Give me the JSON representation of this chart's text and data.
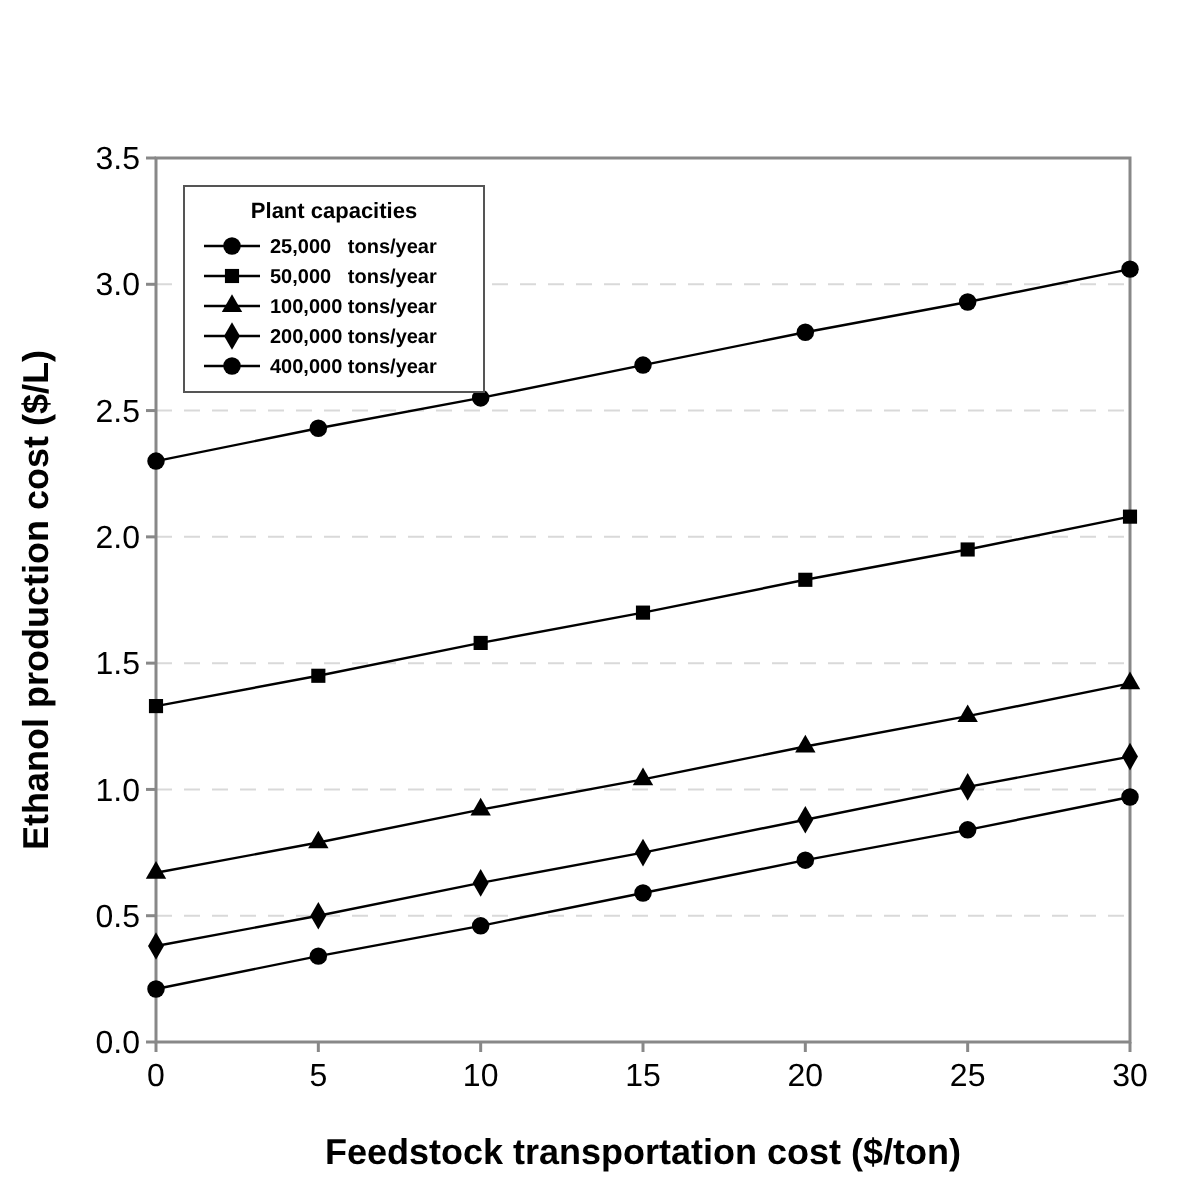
{
  "chart_data": {
    "type": "line",
    "xlabel": "Feedstock transportation cost ($/ton)",
    "ylabel": "Ethanol production cost ($/L)",
    "legend_title": "Plant capacities",
    "legend": "top left",
    "grid": "y",
    "x": [
      0,
      5,
      10,
      15,
      20,
      25,
      30
    ],
    "xlim": [
      0,
      30
    ],
    "xticks": [
      0,
      5,
      10,
      15,
      20,
      25,
      30
    ],
    "ylim": [
      0,
      3.5
    ],
    "yticks": [
      {
        "value": 0,
        "label": "0.0"
      },
      {
        "value": 0.5,
        "label": "0.5"
      },
      {
        "value": 1,
        "label": "1.0"
      },
      {
        "value": 1.5,
        "label": "1.5"
      },
      {
        "value": 2,
        "label": "2.0"
      },
      {
        "value": 2.5,
        "label": "2.5"
      },
      {
        "value": 3,
        "label": "3.0"
      },
      {
        "value": 3.5,
        "label": "3.5"
      }
    ],
    "series": [
      {
        "name": "25,000   tons/year",
        "color": "#000000",
        "marker": "circle",
        "values": [
          2.3,
          2.43,
          2.55,
          2.68,
          2.81,
          2.93,
          3.06
        ]
      },
      {
        "name": "50,000   tons/year",
        "color": "#000000",
        "marker": "square",
        "values": [
          1.33,
          1.45,
          1.58,
          1.7,
          1.83,
          1.95,
          2.08
        ]
      },
      {
        "name": "100,000 tons/year",
        "color": "#000000",
        "marker": "triangle",
        "values": [
          0.67,
          0.79,
          0.92,
          1.04,
          1.17,
          1.29,
          1.42
        ]
      },
      {
        "name": "200,000 tons/year",
        "color": "#000000",
        "marker": "diamond",
        "values": [
          0.38,
          0.5,
          0.63,
          0.75,
          0.88,
          1.01,
          1.13
        ]
      },
      {
        "name": "400,000 tons/year",
        "color": "#000000",
        "marker": "circle",
        "values": [
          0.21,
          0.34,
          0.46,
          0.59,
          0.72,
          0.84,
          0.97
        ]
      }
    ]
  }
}
